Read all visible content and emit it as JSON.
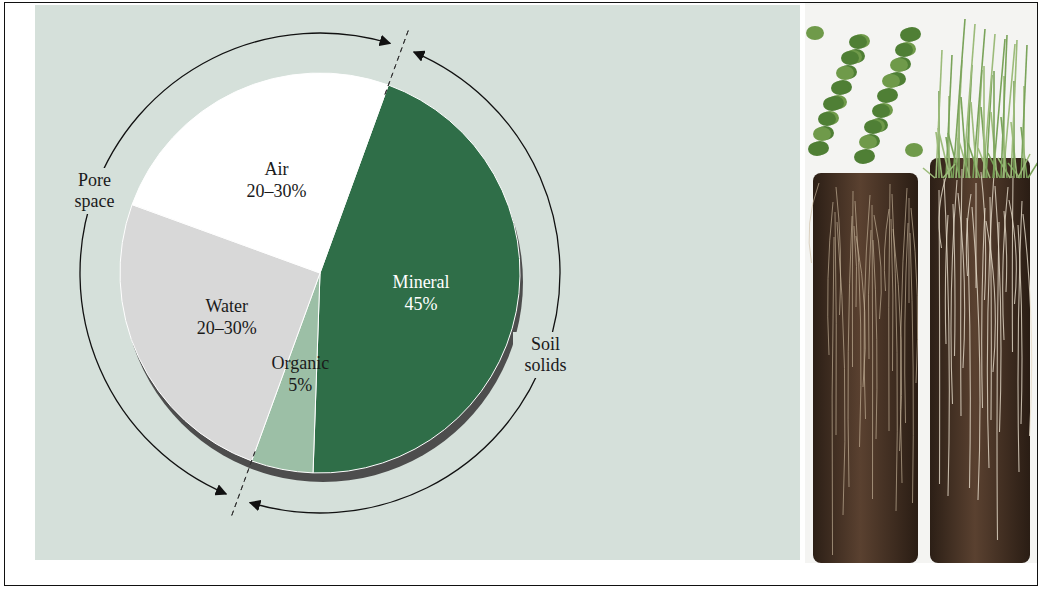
{
  "chart_data": {
    "type": "pie",
    "categories": [
      "Mineral",
      "Organic",
      "Water",
      "Air"
    ],
    "values": [
      45,
      5,
      25,
      25
    ],
    "value_labels": [
      "45%",
      "5%",
      "20–30%",
      "20–30%"
    ],
    "colors": [
      "#2f6e48",
      "#9cbfa6",
      "#d8d8d8",
      "#ffffff"
    ],
    "data_labels": true,
    "groups": [
      {
        "label": "Soil solids",
        "categories": [
          "Mineral",
          "Organic"
        ]
      },
      {
        "label": "Pore space",
        "categories": [
          "Water",
          "Air"
        ]
      }
    ]
  }
}
